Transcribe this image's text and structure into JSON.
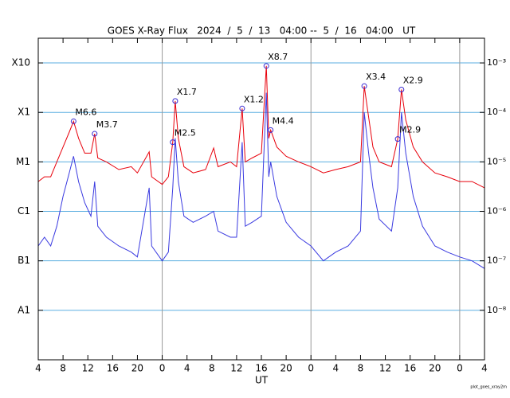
{
  "chart_data": {
    "type": "line",
    "title": "GOES X-Ray Flux   2024  /  5  /  13   04:00 --  5  /  16   04:00   UT",
    "xlabel": "UT",
    "footnote": "plot_goes_xray2m",
    "log_y": true,
    "grid": true,
    "xlim": [
      0,
      72
    ],
    "xticks": [
      {
        "value": 0,
        "label": "4"
      },
      {
        "value": 4,
        "label": "8"
      },
      {
        "value": 8,
        "label": "12"
      },
      {
        "value": 12,
        "label": "16"
      },
      {
        "value": 16,
        "label": "20"
      },
      {
        "value": 20,
        "label": "0"
      },
      {
        "value": 24,
        "label": "4"
      },
      {
        "value": 28,
        "label": "8"
      },
      {
        "value": 32,
        "label": "12"
      },
      {
        "value": 36,
        "label": "16"
      },
      {
        "value": 40,
        "label": "20"
      },
      {
        "value": 44,
        "label": "0"
      },
      {
        "value": 48,
        "label": "4"
      },
      {
        "value": 52,
        "label": "8"
      },
      {
        "value": 56,
        "label": "12"
      },
      {
        "value": 60,
        "label": "16"
      },
      {
        "value": 64,
        "label": "20"
      },
      {
        "value": 68,
        "label": "0"
      },
      {
        "value": 72,
        "label": "4"
      }
    ],
    "day_boundaries": [
      20,
      44,
      68
    ],
    "ylim": [
      1e-09,
      0.00316
    ],
    "yticks": [
      {
        "value": 0.001,
        "label": "X10"
      },
      {
        "value": 0.0001,
        "label": "X1"
      },
      {
        "value": 1e-05,
        "label": "M1"
      },
      {
        "value": 1e-06,
        "label": "C1"
      },
      {
        "value": 1e-07,
        "label": "B1"
      },
      {
        "value": 1e-08,
        "label": "A1"
      }
    ],
    "y2lim": [
      1e-09,
      0.00316
    ],
    "y2ticks": [
      {
        "value": 0.001,
        "label": "10⁻³"
      },
      {
        "value": 0.0001,
        "label": "10⁻⁴"
      },
      {
        "value": 1e-05,
        "label": "10⁻⁵"
      },
      {
        "value": 1e-06,
        "label": "10⁻⁶"
      },
      {
        "value": 1e-07,
        "label": "10⁻⁷"
      },
      {
        "value": 1e-08,
        "label": "10⁻⁸"
      }
    ],
    "x": [
      0,
      1,
      2,
      3,
      4,
      5,
      5.7,
      6.5,
      7.5,
      8.5,
      9.1,
      9.6,
      11,
      13,
      15,
      16,
      17.9,
      18.3,
      20,
      21,
      21.7,
      22.1,
      22.6,
      23.5,
      25,
      27,
      28.3,
      29,
      31,
      32,
      32.9,
      33.4,
      34.5,
      36,
      36.8,
      37.2,
      37.5,
      38.5,
      40,
      42,
      44,
      46,
      48,
      50,
      52,
      52.6,
      53.3,
      54,
      55,
      57,
      58,
      58.6,
      59.3,
      60.5,
      62,
      64,
      66,
      68,
      70,
      72
    ],
    "series": [
      {
        "color": "#e8000b",
        "values": [
          4e-06,
          5e-06,
          5e-06,
          1e-05,
          2e-05,
          4e-05,
          6.6e-05,
          3e-05,
          1.5e-05,
          1.5e-05,
          3.7e-05,
          1.2e-05,
          1e-05,
          7e-06,
          8e-06,
          6e-06,
          1.6e-05,
          5e-06,
          3.5e-06,
          5e-06,
          2.5e-05,
          0.00017,
          3e-05,
          8e-06,
          6e-06,
          7e-06,
          1.9e-05,
          8e-06,
          1e-05,
          8e-06,
          0.00012,
          1e-05,
          1.2e-05,
          1.5e-05,
          0.00087,
          3e-05,
          4.4e-05,
          2e-05,
          1.3e-05,
          1e-05,
          8e-06,
          6e-06,
          7e-06,
          8e-06,
          1e-05,
          0.00034,
          8e-05,
          2e-05,
          1e-05,
          8e-06,
          2.9e-05,
          0.00029,
          7e-05,
          2e-05,
          1e-05,
          6e-06,
          5e-06,
          4e-06,
          4e-06,
          3e-06
        ]
      },
      {
        "color": "#3a3ae0",
        "values": [
          2e-07,
          3e-07,
          2e-07,
          5e-07,
          2e-06,
          6e-06,
          1.3e-05,
          4e-06,
          1.5e-06,
          8e-07,
          4e-06,
          5e-07,
          3e-07,
          2e-07,
          1.5e-07,
          1.2e-07,
          3e-06,
          2e-07,
          1e-07,
          1.5e-07,
          3e-06,
          3e-05,
          4e-06,
          8e-07,
          6e-07,
          8e-07,
          1e-06,
          4e-07,
          3e-07,
          3e-07,
          2.5e-05,
          5e-07,
          6e-07,
          8e-07,
          0.00025,
          5e-06,
          1e-05,
          2e-06,
          6e-07,
          3e-07,
          2e-07,
          1e-07,
          1.5e-07,
          2e-07,
          4e-07,
          0.0001,
          1.5e-05,
          3e-06,
          7e-07,
          4e-07,
          3e-06,
          0.0001,
          1.5e-05,
          2e-06,
          5e-07,
          2e-07,
          1.5e-07,
          1.2e-07,
          1e-07,
          7e-08
        ]
      }
    ],
    "annotations": [
      {
        "label": "M6.6",
        "x": 5.7,
        "value": 6.6e-05
      },
      {
        "label": "M3.7",
        "x": 9.1,
        "value": 3.7e-05
      },
      {
        "label": "M2.5",
        "x": 21.7,
        "value": 2.5e-05
      },
      {
        "label": "X1.7",
        "x": 22.1,
        "value": 0.00017
      },
      {
        "label": "X1.2",
        "x": 32.9,
        "value": 0.00012
      },
      {
        "label": "X8.7",
        "x": 36.8,
        "value": 0.00087
      },
      {
        "label": "M4.4",
        "x": 37.5,
        "value": 4.4e-05
      },
      {
        "label": "X3.4",
        "x": 52.6,
        "value": 0.00034
      },
      {
        "label": "M2.9",
        "x": 58,
        "value": 2.9e-05
      },
      {
        "label": "X2.9",
        "x": 58.6,
        "value": 0.00029
      }
    ],
    "grid_color": "#5aaee0",
    "day_line_color": "#999999",
    "annotation_marker_color": "#3a2ad0"
  }
}
